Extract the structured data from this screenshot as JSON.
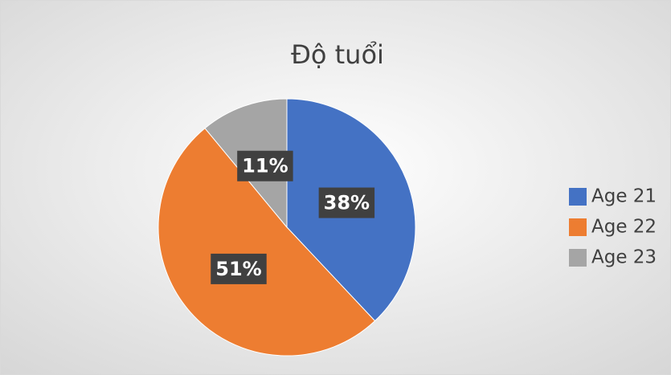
{
  "chart_data": {
    "type": "pie",
    "title": "Độ tuổi",
    "categories": [
      "Age 21",
      "Age 22",
      "Age 23"
    ],
    "values": [
      38,
      51,
      11
    ],
    "value_labels": [
      "38%",
      "51%",
      "11%"
    ],
    "colors": [
      "#4472c4",
      "#ed7d31",
      "#a5a5a5"
    ],
    "legend": "right"
  }
}
